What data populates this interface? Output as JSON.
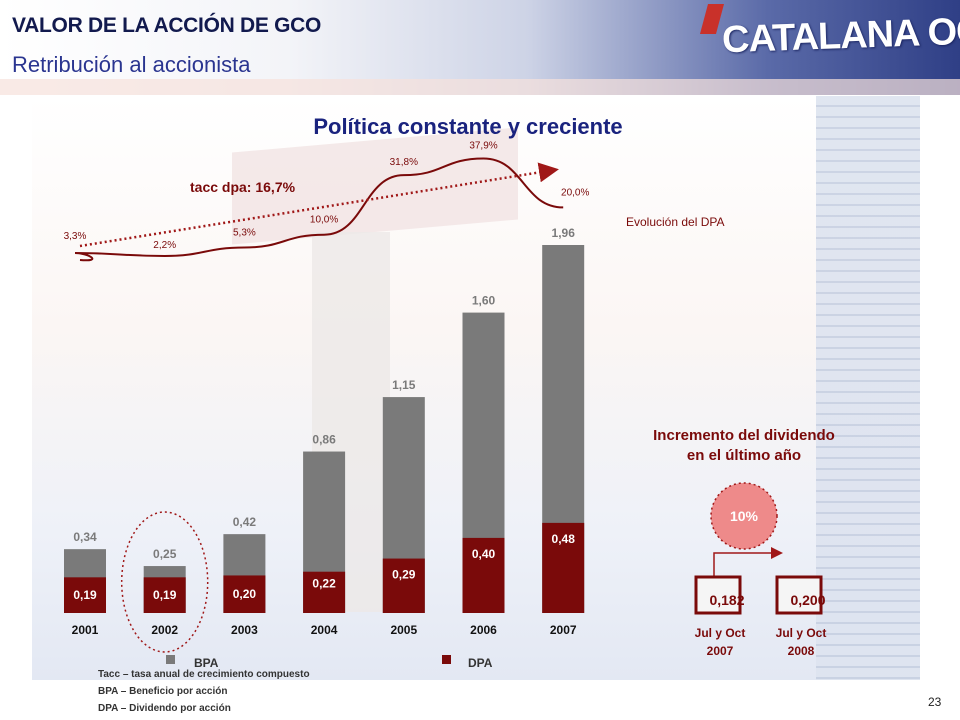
{
  "header": {
    "title": "VALOR DE LA ACCIÓN DE GCO",
    "subtitle": "Retribución al accionista",
    "logo_text": "CATALANA OCCIDENTE"
  },
  "colors": {
    "bpa": "#7a7a7a",
    "dpa": "#7a0a0a",
    "title": "#1a237e",
    "curve": "#7a0a0a",
    "badge": "#ee8a8a"
  },
  "page_number": "23",
  "footnotes": [
    "Tacc – tasa anual de crecimiento compuesto",
    "BPA – Beneficio por acción",
    "DPA – Dividendo por acción"
  ],
  "chart_data": {
    "type": "bar",
    "title": "Política constante y creciente",
    "categories": [
      "2001",
      "2002",
      "2003",
      "2004",
      "2005",
      "2006",
      "2007"
    ],
    "series": [
      {
        "name": "BPA",
        "values": [
          0.34,
          0.25,
          0.42,
          0.86,
          1.15,
          1.6,
          1.96
        ],
        "labels": [
          "0,34",
          "0,25",
          "0,42",
          "0,86",
          "1,15",
          "1,60",
          "1,96"
        ]
      },
      {
        "name": "DPA",
        "values": [
          0.19,
          0.19,
          0.2,
          0.22,
          0.29,
          0.4,
          0.48
        ],
        "labels": [
          "0,19",
          "0,19",
          "0,20",
          "0,22",
          "0,29",
          "0,40",
          "0,48"
        ]
      }
    ],
    "ylim": [
      0,
      1.96
    ],
    "legend": [
      "BPA",
      "DPA"
    ],
    "legend_position": "bottom",
    "dpa_growth": {
      "label": "Evolución del DPA",
      "values": [
        3.3,
        2.2,
        5.3,
        10.0,
        31.8,
        37.9,
        20.0
      ],
      "labels": [
        "3,3%",
        "2,2%",
        "5,3%",
        "10,0%",
        "31,8%",
        "37,9%",
        "20,0%"
      ]
    },
    "trend_label": "tacc dpa: 16,7%",
    "highlight_category": "2002",
    "dividend_increase": {
      "title_line1": "Incremento del dividendo",
      "title_line2": "en el último año",
      "badge": "10%",
      "items": [
        {
          "value": "0,182",
          "period_line1": "Jul y Oct",
          "period_line2": "2007"
        },
        {
          "value": "0,200",
          "period_line1": "Jul y Oct",
          "period_line2": "2008"
        }
      ]
    }
  }
}
